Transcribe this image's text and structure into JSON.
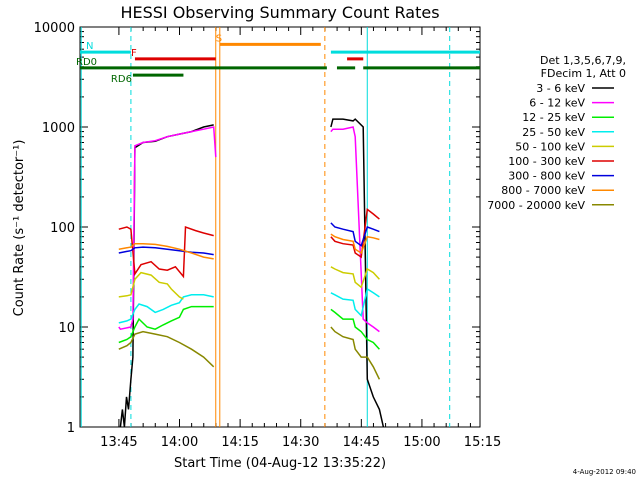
{
  "chart_data": {
    "type": "line",
    "title": "HESSI Observing Summary Count Rates",
    "xlabel": "Start Time (04-Aug-12 13:35:22)",
    "ylabel": "Count Rate (s⁻¹ detector⁻¹)",
    "y_scale": "log",
    "ylim": [
      1,
      10000
    ],
    "xlim_minutes": [
      0,
      99
    ],
    "x_tick_labels": [
      "13:45",
      "14:00",
      "14:15",
      "14:30",
      "14:45",
      "15:00",
      "15:15"
    ],
    "x_ticks_minutes": [
      9.63,
      24.63,
      39.63,
      54.63,
      69.63,
      84.63,
      99.63
    ],
    "y_tick_labels": [
      "1",
      "10",
      "100",
      "1000",
      "10000"
    ],
    "y_ticks": [
      1,
      10,
      100,
      1000,
      10000
    ],
    "grid": false,
    "legend": {
      "position": "right",
      "header": [
        "Det 1,3,5,6,7,9,",
        "FDecim 1, Att 0"
      ],
      "entries": [
        {
          "label": "3 - 6 keV",
          "color": "#000000"
        },
        {
          "label": "6 - 12 keV",
          "color": "#ff00ff"
        },
        {
          "label": "12 - 25 keV",
          "color": "#00ee00"
        },
        {
          "label": "25 - 50 keV",
          "color": "#00eeee"
        },
        {
          "label": "50 - 100 keV",
          "color": "#cccc00"
        },
        {
          "label": "100 - 300 keV",
          "color": "#dd0000"
        },
        {
          "label": "300 - 800 keV",
          "color": "#0000dd"
        },
        {
          "label": "800 - 7000 keV",
          "color": "#ff8800"
        },
        {
          "label": "7000 - 20000 keV",
          "color": "#888800"
        }
      ]
    },
    "flags": [
      {
        "label": "N",
        "color": "#00dddd",
        "segments": [
          [
            0,
            12.6
          ],
          [
            62.1,
            99
          ]
        ],
        "level": 5600
      },
      {
        "label": "F",
        "color": "#dd0000",
        "segments": [
          [
            13.6,
            33.6
          ],
          [
            66.1,
            70.1
          ]
        ],
        "level": 4800
      },
      {
        "label": "S",
        "color": "#ff8800",
        "segments": [
          [
            34.6,
            59.6
          ]
        ],
        "level": 6700
      },
      {
        "label": "RD0",
        "color": "#006600",
        "segments": [
          [
            0,
            61.1
          ],
          [
            63.6,
            68.1
          ],
          [
            70.1,
            99
          ]
        ],
        "level": 3900
      },
      {
        "label": "RD6",
        "color": "#006600",
        "segments": [
          [
            13.1,
            25.6
          ]
        ],
        "level": 3300
      }
    ],
    "vertical_markers": [
      {
        "x": 12.6,
        "color": "#00dddd",
        "style": "dashed"
      },
      {
        "x": 0.3,
        "color": "#00dddd",
        "style": "solid"
      },
      {
        "x": 71.1,
        "color": "#00dddd",
        "style": "solid"
      },
      {
        "x": 91.5,
        "color": "#00dddd",
        "style": "dashed"
      },
      {
        "x": 34.6,
        "color": "#ff8800",
        "style": "solid"
      },
      {
        "x": 33.6,
        "color": "#ff8800",
        "style": "solid"
      },
      {
        "x": 60.6,
        "color": "#ff8800",
        "style": "dashed"
      }
    ],
    "series": [
      {
        "name": "3 - 6 keV",
        "color": "#000000",
        "segments": [
          {
            "x": [
              10.0,
              10.5,
              11.0,
              11.5,
              12.0,
              12.6,
              13.1,
              13.6,
              15.6,
              18.6,
              21.6,
              24.6,
              27.6,
              30.6,
              33.1
            ],
            "y": [
              1,
              1.5,
              1,
              2,
              1.5,
              3,
              5,
              620,
              700,
              720,
              800,
              850,
              900,
              1000,
              1050
            ]
          },
          {
            "x": [
              62.1,
              62.6,
              65.1,
              67.6,
              68.1,
              70.1,
              71.1,
              72.6,
              74.1,
              75.1
            ],
            "y": [
              1000,
              1200,
              1200,
              1150,
              1200,
              1000,
              3,
              2,
              1.5,
              1
            ]
          }
        ]
      },
      {
        "name": "6 - 12 keV",
        "color": "#ff00ff",
        "segments": [
          {
            "x": [
              9.6,
              10.0,
              12.6,
              13.1,
              13.6,
              15.6,
              18.6,
              21.6,
              24.6,
              27.6,
              30.6,
              33.1,
              33.6
            ],
            "y": [
              10,
              9.5,
              10,
              12,
              650,
              700,
              730,
              800,
              850,
              900,
              950,
              1000,
              500
            ]
          },
          {
            "x": [
              62.1,
              62.6,
              65.1,
              67.6,
              68.1,
              70.1,
              71.1,
              72.6,
              74.1
            ],
            "y": [
              900,
              950,
              950,
              1000,
              800,
              12,
              11,
              10,
              9
            ]
          }
        ]
      },
      {
        "name": "12 - 25 keV",
        "color": "#00ee00",
        "segments": [
          {
            "x": [
              9.6,
              11.6,
              12.6,
              13.6,
              14.6,
              16.6,
              18.6,
              20.6,
              22.6,
              24.6,
              25.6,
              27.6,
              30.6,
              33.1
            ],
            "y": [
              7,
              7.5,
              8,
              10,
              12,
              10,
              9.5,
              10.5,
              11.5,
              12.5,
              15,
              16,
              16,
              16
            ]
          },
          {
            "x": [
              62.1,
              63.1,
              65.1,
              67.6,
              68.1,
              69.6,
              71.1,
              72.6,
              74.1
            ],
            "y": [
              15,
              14,
              12,
              12,
              10,
              9,
              7.5,
              7,
              6
            ]
          }
        ]
      },
      {
        "name": "25 - 50 keV",
        "color": "#00eeee",
        "segments": [
          {
            "x": [
              9.6,
              11.6,
              12.6,
              13.6,
              14.6,
              16.6,
              18.6,
              20.6,
              22.6,
              24.6,
              25.6,
              27.6,
              30.6,
              33.1
            ],
            "y": [
              11,
              11.5,
              12,
              15,
              17,
              16,
              14,
              15,
              16.5,
              17.5,
              20,
              21,
              21,
              20
            ]
          },
          {
            "x": [
              62.1,
              63.1,
              65.1,
              67.6,
              68.1,
              69.6,
              71.1,
              72.6,
              74.1
            ],
            "y": [
              22,
              21,
              19,
              18.5,
              15,
              13,
              24,
              22,
              20
            ]
          }
        ]
      },
      {
        "name": "50 - 100 keV",
        "color": "#cccc00",
        "segments": [
          {
            "x": [
              9.6,
              11.6,
              12.6,
              13.6,
              15.1,
              17.6,
              19.6,
              21.6,
              22.6,
              24.6,
              25.6
            ],
            "y": [
              20,
              20.5,
              21,
              30,
              35,
              33,
              28,
              27,
              24,
              20,
              19
            ]
          },
          {
            "x": [
              62.1,
              63.1,
              65.1,
              67.6,
              68.1,
              69.6,
              71.1,
              72.6,
              74.1
            ],
            "y": [
              40,
              38,
              35,
              34,
              28,
              25,
              38,
              35,
              30
            ]
          }
        ]
      },
      {
        "name": "100 - 300 keV",
        "color": "#dd0000",
        "segments": [
          {
            "x": [
              9.6,
              11.6,
              12.6,
              13.6,
              15.1,
              17.6,
              19.6,
              21.6,
              23.6,
              25.6,
              26.1,
              28.6,
              30.6,
              33.1
            ],
            "y": [
              95,
              100,
              95,
              34,
              42,
              45,
              38,
              37,
              40,
              32,
              100,
              92,
              87,
              82
            ]
          },
          {
            "x": [
              62.1,
              63.1,
              65.1,
              67.6,
              68.1,
              69.6,
              71.1,
              72.6,
              74.1
            ],
            "y": [
              80,
              72,
              68,
              66,
              55,
              50,
              150,
              135,
              120
            ]
          }
        ]
      },
      {
        "name": "300 - 800 keV",
        "color": "#0000dd",
        "segments": [
          {
            "x": [
              9.6,
              11.6,
              12.6,
              13.6,
              15.6,
              18.6,
              21.6,
              24.6,
              27.6,
              30.6,
              33.1
            ],
            "y": [
              55,
              57,
              58,
              62,
              63,
              62,
              60,
              58,
              56,
              55,
              53
            ]
          },
          {
            "x": [
              62.1,
              63.1,
              65.1,
              67.6,
              68.1,
              69.6,
              71.1,
              72.6,
              74.1
            ],
            "y": [
              110,
              100,
              95,
              90,
              72,
              65,
              100,
              95,
              90
            ]
          }
        ]
      },
      {
        "name": "800 - 7000 keV",
        "color": "#ff8800",
        "segments": [
          {
            "x": [
              9.6,
              11.6,
              12.6,
              13.6,
              15.6,
              18.6,
              21.6,
              24.6,
              27.6,
              30.6,
              33.1
            ],
            "y": [
              60,
              62,
              63,
              68,
              68,
              67,
              64,
              60,
              55,
              50,
              48
            ]
          },
          {
            "x": [
              62.1,
              63.1,
              65.1,
              67.6,
              68.1,
              69.6,
              71.1,
              72.6,
              74.1
            ],
            "y": [
              85,
              80,
              75,
              72,
              60,
              55,
              80,
              78,
              75
            ]
          }
        ]
      },
      {
        "name": "7000 - 20000 keV",
        "color": "#888800",
        "segments": [
          {
            "x": [
              9.6,
              11.6,
              12.6,
              13.6,
              15.6,
              18.6,
              21.6,
              24.6,
              27.6,
              30.6,
              33.1
            ],
            "y": [
              6,
              6.5,
              7,
              8.5,
              9,
              8.5,
              8,
              7,
              6,
              5,
              4
            ]
          },
          {
            "x": [
              62.1,
              63.1,
              65.1,
              67.6,
              68.1,
              69.6,
              71.1,
              72.6,
              74.1
            ],
            "y": [
              10,
              9,
              8,
              7.5,
              6,
              5,
              5,
              4,
              3
            ]
          }
        ]
      }
    ]
  },
  "footer": {
    "timestamp": "4-Aug-2012 09:40"
  }
}
